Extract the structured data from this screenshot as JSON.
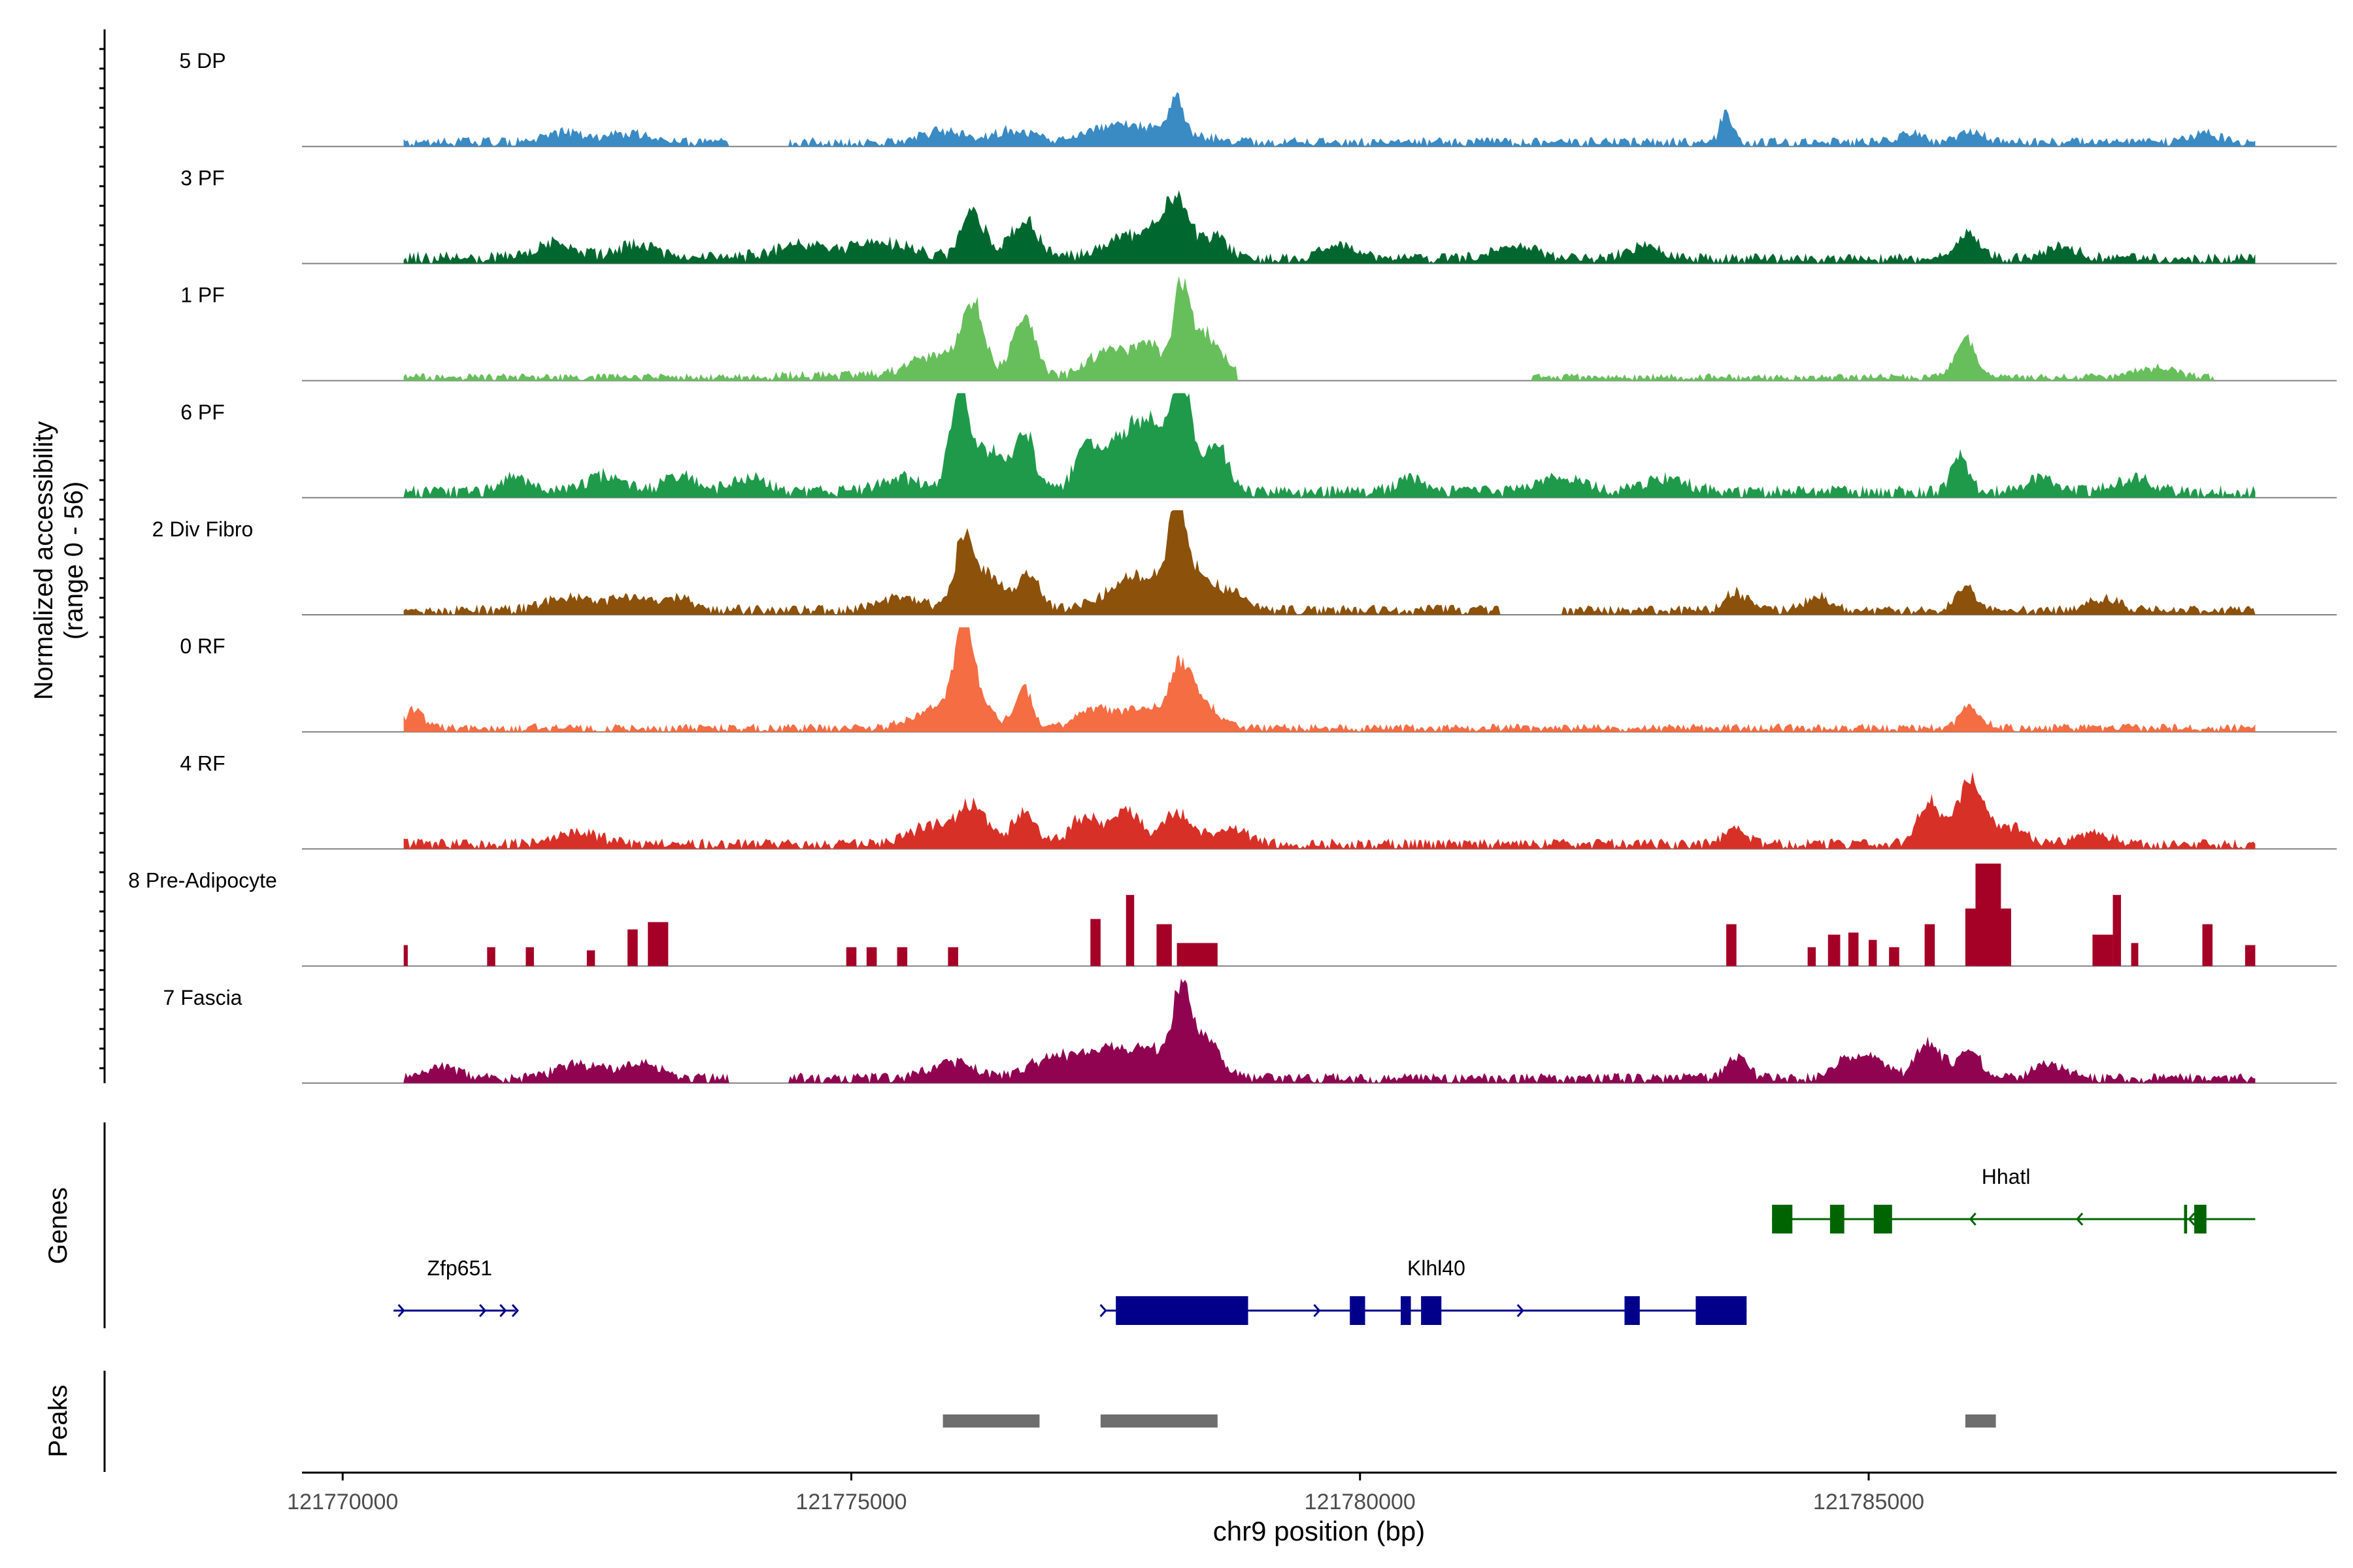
{
  "chart_data": {
    "type": "area",
    "title": "",
    "ylabel_line1": "Normalized accessibility",
    "ylabel_line2": "(range 0 - 56)",
    "y_range": [
      0,
      56
    ],
    "xlabel": "chr9 position (bp)",
    "xlim": [
      121769600,
      121789600
    ],
    "x_ticks": [
      121770000,
      121775000,
      121780000,
      121785000
    ],
    "x_tick_labels": [
      "121770000",
      "121775000",
      "121780000",
      "121785000"
    ],
    "signal_range": [
      121770600,
      121788800
    ],
    "tracks": [
      {
        "name": "5 DP",
        "color": "#3a8ac4",
        "noise": [
          [
            121770600,
            121773800,
            0.09
          ],
          [
            121774400,
            121786500,
            0.09
          ],
          [
            121786500,
            121788800,
            0.09
          ]
        ],
        "peaks": [
          [
            121772200,
            280,
            0.11
          ],
          [
            121772800,
            250,
            0.1
          ],
          [
            121775900,
            300,
            0.12
          ],
          [
            121776600,
            280,
            0.13
          ],
          [
            121777500,
            300,
            0.14
          ],
          [
            121778200,
            90,
            0.38
          ],
          [
            121778000,
            500,
            0.15
          ],
          [
            121783600,
            80,
            0.33
          ],
          [
            121785400,
            140,
            0.12
          ],
          [
            121786000,
            200,
            0.1
          ],
          [
            121788300,
            200,
            0.1
          ]
        ],
        "gaps": [
          [
            121773800,
            121774400
          ]
        ]
      },
      {
        "name": "3 PF",
        "color": "#00682f",
        "noise": [
          [
            121770600,
            121778700,
            0.12
          ],
          [
            121778700,
            121788800,
            0.1
          ]
        ],
        "peaks": [
          [
            121772100,
            300,
            0.16
          ],
          [
            121772900,
            250,
            0.15
          ],
          [
            121774500,
            350,
            0.15
          ],
          [
            121775300,
            400,
            0.17
          ],
          [
            121776200,
            160,
            0.48
          ],
          [
            121776700,
            180,
            0.42
          ],
          [
            121777800,
            400,
            0.26
          ],
          [
            121778200,
            200,
            0.55
          ],
          [
            121778600,
            150,
            0.22
          ],
          [
            121779800,
            250,
            0.14
          ],
          [
            121781500,
            300,
            0.15
          ],
          [
            121782800,
            250,
            0.15
          ],
          [
            121786000,
            170,
            0.26
          ],
          [
            121786900,
            250,
            0.12
          ]
        ],
        "gaps": []
      },
      {
        "name": "1 PF",
        "color": "#67bf5c",
        "noise": [
          [
            121770600,
            121774200,
            0.07
          ],
          [
            121774200,
            121778800,
            0.1
          ],
          [
            121781700,
            121788400,
            0.07
          ]
        ],
        "peaks": [
          [
            121775900,
            400,
            0.25
          ],
          [
            121776200,
            140,
            0.68
          ],
          [
            121776700,
            160,
            0.58
          ],
          [
            121777500,
            220,
            0.28
          ],
          [
            121777900,
            220,
            0.38
          ],
          [
            121778250,
            110,
            0.96
          ],
          [
            121778500,
            200,
            0.45
          ],
          [
            121785950,
            130,
            0.45
          ],
          [
            121787800,
            300,
            0.1
          ]
        ],
        "gaps": [
          [
            121778800,
            121781700
          ],
          [
            121788400,
            121788800
          ]
        ]
      },
      {
        "name": "6 PF",
        "color": "#1f9a4b",
        "noise": [
          [
            121770600,
            121788800,
            0.12
          ]
        ],
        "peaks": [
          [
            121771700,
            200,
            0.15
          ],
          [
            121772600,
            250,
            0.18
          ],
          [
            121773300,
            200,
            0.2
          ],
          [
            121774000,
            250,
            0.15
          ],
          [
            121775500,
            300,
            0.15
          ],
          [
            121776050,
            120,
            1.0
          ],
          [
            121776300,
            250,
            0.5
          ],
          [
            121776700,
            150,
            0.6
          ],
          [
            121777300,
            150,
            0.4
          ],
          [
            121777700,
            350,
            0.48
          ],
          [
            121778250,
            100,
            0.96
          ],
          [
            121778100,
            400,
            0.55
          ],
          [
            121778600,
            150,
            0.4
          ],
          [
            121780500,
            200,
            0.15
          ],
          [
            121782000,
            300,
            0.16
          ],
          [
            121783000,
            300,
            0.15
          ],
          [
            121785900,
            120,
            0.42
          ],
          [
            121786700,
            250,
            0.14
          ],
          [
            121787600,
            250,
            0.15
          ]
        ],
        "gaps": []
      },
      {
        "name": "2 Div Fibro",
        "color": "#8c510a",
        "noise": [
          [
            121770600,
            121781400,
            0.1
          ],
          [
            121782000,
            121788800,
            0.09
          ]
        ],
        "peaks": [
          [
            121772200,
            300,
            0.14
          ],
          [
            121772800,
            250,
            0.16
          ],
          [
            121773300,
            200,
            0.14
          ],
          [
            121775500,
            300,
            0.14
          ],
          [
            121776100,
            120,
            0.62
          ],
          [
            121776300,
            250,
            0.4
          ],
          [
            121776750,
            150,
            0.38
          ],
          [
            121777800,
            400,
            0.35
          ],
          [
            121778200,
            90,
            0.97
          ],
          [
            121778300,
            250,
            0.45
          ],
          [
            121778700,
            200,
            0.2
          ],
          [
            121783700,
            150,
            0.2
          ],
          [
            121784500,
            200,
            0.15
          ],
          [
            121785950,
            140,
            0.25
          ],
          [
            121787300,
            250,
            0.12
          ]
        ],
        "gaps": [
          [
            121781400,
            121782000
          ]
        ]
      },
      {
        "name": "0 RF",
        "color": "#f46d43",
        "noise": [
          [
            121770600,
            121788800,
            0.08
          ]
        ],
        "peaks": [
          [
            121770700,
            150,
            0.18
          ],
          [
            121775800,
            300,
            0.2
          ],
          [
            121776100,
            120,
            0.9
          ],
          [
            121776200,
            220,
            0.35
          ],
          [
            121776700,
            120,
            0.45
          ],
          [
            121777400,
            250,
            0.22
          ],
          [
            121777900,
            300,
            0.22
          ],
          [
            121778250,
            150,
            0.62
          ],
          [
            121778500,
            200,
            0.22
          ],
          [
            121786000,
            150,
            0.22
          ]
        ],
        "gaps": []
      },
      {
        "name": "4 RF",
        "color": "#d73027",
        "noise": [
          [
            121770600,
            121788800,
            0.1
          ]
        ],
        "peaks": [
          [
            121772300,
            300,
            0.14
          ],
          [
            121775800,
            300,
            0.2
          ],
          [
            121776200,
            200,
            0.4
          ],
          [
            121776700,
            160,
            0.35
          ],
          [
            121777300,
            200,
            0.3
          ],
          [
            121777700,
            200,
            0.36
          ],
          [
            121778200,
            200,
            0.32
          ],
          [
            121778700,
            300,
            0.15
          ],
          [
            121783700,
            150,
            0.18
          ],
          [
            121785600,
            160,
            0.47
          ],
          [
            121786000,
            170,
            0.72
          ],
          [
            121786400,
            200,
            0.2
          ],
          [
            121787200,
            250,
            0.12
          ]
        ],
        "gaps": []
      },
      {
        "name": "8 Pre-Adipocyte",
        "color": "#a50026",
        "blocks": [
          [
            121770600,
            121770640,
            0.2
          ],
          [
            121771420,
            121771500,
            0.18
          ],
          [
            121771800,
            121771880,
            0.18
          ],
          [
            121772400,
            121772480,
            0.15
          ],
          [
            121772800,
            121772900,
            0.35
          ],
          [
            121773000,
            121773200,
            0.42
          ],
          [
            121774950,
            121775050,
            0.18
          ],
          [
            121775150,
            121775250,
            0.18
          ],
          [
            121775450,
            121775550,
            0.18
          ],
          [
            121775950,
            121776050,
            0.18
          ],
          [
            121777350,
            121777450,
            0.45
          ],
          [
            121777700,
            121777780,
            0.68
          ],
          [
            121778000,
            121778150,
            0.4
          ],
          [
            121778200,
            121778600,
            0.22
          ],
          [
            121783600,
            121783700,
            0.4
          ],
          [
            121784400,
            121784480,
            0.18
          ],
          [
            121784600,
            121784720,
            0.3
          ],
          [
            121784800,
            121784900,
            0.32
          ],
          [
            121785000,
            121785080,
            0.25
          ],
          [
            121785200,
            121785300,
            0.18
          ],
          [
            121785550,
            121785650,
            0.4
          ],
          [
            121785950,
            121786400,
            0.55
          ],
          [
            121786050,
            121786300,
            0.98
          ],
          [
            121787200,
            121787400,
            0.3
          ],
          [
            121787400,
            121787480,
            0.68
          ],
          [
            121787580,
            121787650,
            0.22
          ],
          [
            121788280,
            121788380,
            0.4
          ],
          [
            121788700,
            121788800,
            0.2
          ]
        ]
      },
      {
        "name": "7 Fascia",
        "color": "#8f0351",
        "noise": [
          [
            121770600,
            121773800,
            0.1
          ],
          [
            121774400,
            121788800,
            0.1
          ]
        ],
        "peaks": [
          [
            121771000,
            250,
            0.12
          ],
          [
            121772300,
            300,
            0.15
          ],
          [
            121772900,
            300,
            0.16
          ],
          [
            121776000,
            300,
            0.18
          ],
          [
            121777000,
            350,
            0.22
          ],
          [
            121777500,
            300,
            0.24
          ],
          [
            121778000,
            400,
            0.28
          ],
          [
            121778250,
            120,
            0.82
          ],
          [
            121778500,
            200,
            0.35
          ],
          [
            121783700,
            150,
            0.22
          ],
          [
            121784800,
            200,
            0.15
          ],
          [
            121785000,
            250,
            0.18
          ],
          [
            121785600,
            180,
            0.4
          ],
          [
            121786000,
            150,
            0.3
          ],
          [
            121786800,
            250,
            0.14
          ]
        ],
        "gaps": [
          [
            121773800,
            121774400
          ]
        ]
      }
    ],
    "genes_label": "Genes",
    "peaks_label": "Peaks",
    "genes": [
      {
        "name": "Zfp651",
        "color": "#00008b",
        "start": 121770500,
        "end": 121771700,
        "strand": "+",
        "row": 2,
        "label_pos": 121771150,
        "exons": [],
        "arrows": [
          121770600,
          121771400,
          121771600,
          121771720
        ]
      },
      {
        "name": "Klhl40",
        "color": "#00008b",
        "start": 121777500,
        "end": 121783800,
        "strand": "+",
        "row": 2,
        "label_pos": 121780750,
        "exons": [
          [
            121777600,
            121778900
          ],
          [
            121779900,
            121780050
          ],
          [
            121780400,
            121780500
          ],
          [
            121780600,
            121780800
          ],
          [
            121782600,
            121782750
          ],
          [
            121783300,
            121783800
          ]
        ],
        "arrows": [
          121777500,
          121779600,
          121780700,
          121781600
        ]
      },
      {
        "name": "Hhatl",
        "color": "#006400",
        "start": 121784050,
        "end": 121788800,
        "strand": "-",
        "row": 1,
        "label_pos": 121786350,
        "exons": [
          [
            121784050,
            121784250
          ],
          [
            121784620,
            121784760
          ],
          [
            121785050,
            121785230
          ],
          [
            121788100,
            121788130
          ],
          [
            121788200,
            121788320
          ]
        ],
        "arrows": [
          121786000,
          121787050,
          121788150
        ]
      }
    ],
    "peak_regions": [
      [
        121775900,
        121776850
      ],
      [
        121777450,
        121778600
      ],
      [
        121785950,
        121786250
      ]
    ]
  }
}
